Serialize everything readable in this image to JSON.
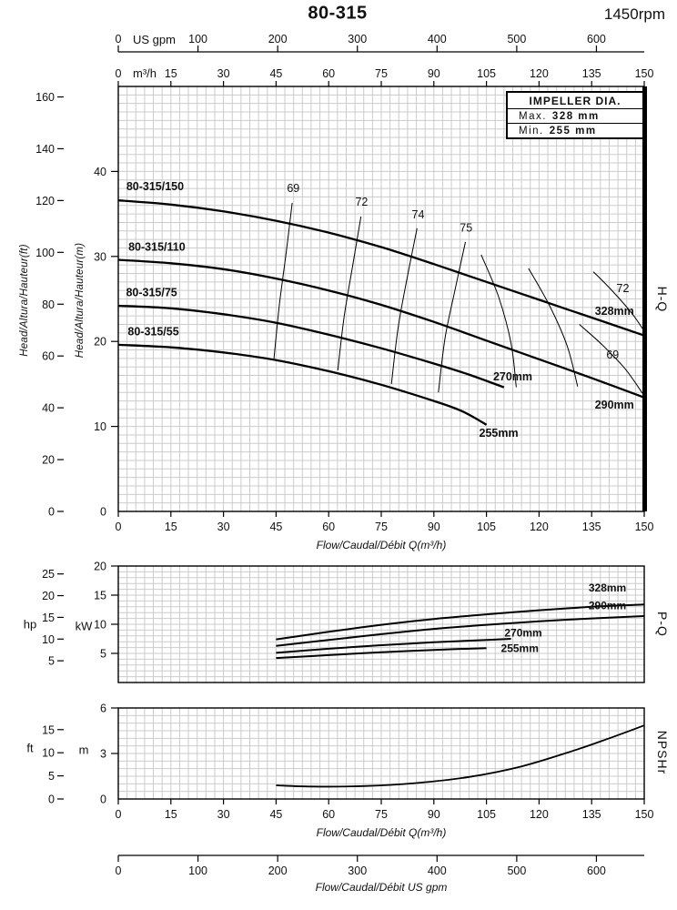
{
  "header": {
    "title": "80-315",
    "rpm": "1450rpm"
  },
  "impeller_box": {
    "title": "IMPELLER DIA.",
    "max_label": "Max.",
    "max_value": "328 mm",
    "min_label": "Min.",
    "min_value": "255 mm"
  },
  "axis_labels": {
    "us_gpm": "US gpm",
    "m3h": "m³/h",
    "head_ft": "Head/Altura/Hauteur(ft)",
    "head_m": "Head/Altura/Hauteur(m)",
    "hp": "hp",
    "kw": "kW",
    "ft": "ft",
    "m": "m",
    "flow_m3h": "Flow/Caudal/Débit Q(m³/h)",
    "flow_gpm": "Flow/Caudal/Débit  US gpm",
    "hq": "H-Q",
    "pq": "P-Q",
    "npshr": "NPSHr"
  },
  "chart_data": [
    {
      "type": "line",
      "name": "H-Q",
      "x_axis_m3h": {
        "min": 0,
        "max": 150,
        "ticks": [
          0,
          15,
          30,
          45,
          60,
          75,
          90,
          105,
          120,
          135,
          150
        ]
      },
      "x_axis_usgpm": {
        "min": 0,
        "max": 660,
        "ticks": [
          0,
          100,
          200,
          300,
          400,
          500,
          600
        ]
      },
      "y_axis_m": {
        "min": 0,
        "max": 50,
        "ticks": [
          0,
          10,
          20,
          30,
          40
        ]
      },
      "y_axis_ft": {
        "min": 0,
        "max": 160,
        "ticks": [
          0,
          20,
          40,
          60,
          80,
          100,
          120,
          140,
          160
        ]
      },
      "series": [
        {
          "name": "328mm",
          "model": "80-315/150",
          "points": [
            [
              0,
              36.6
            ],
            [
              15,
              36.1
            ],
            [
              30,
              35.3
            ],
            [
              45,
              34.2
            ],
            [
              60,
              32.8
            ],
            [
              75,
              31.1
            ],
            [
              90,
              29.1
            ],
            [
              105,
              27.0
            ],
            [
              120,
              24.9
            ],
            [
              135,
              22.8
            ],
            [
              150,
              20.7
            ]
          ],
          "model_label_at": [
            10.5,
            37.8
          ],
          "dia_label_at": [
            141.5,
            23.1
          ]
        },
        {
          "name": "290mm",
          "model": "80-315/110",
          "points": [
            [
              0,
              29.6
            ],
            [
              15,
              29.2
            ],
            [
              30,
              28.5
            ],
            [
              45,
              27.4
            ],
            [
              60,
              26.0
            ],
            [
              75,
              24.3
            ],
            [
              90,
              22.3
            ],
            [
              105,
              20.1
            ],
            [
              120,
              17.9
            ],
            [
              135,
              15.7
            ],
            [
              150,
              13.4
            ]
          ],
          "model_label_at": [
            11,
            30.7
          ],
          "dia_label_at": [
            141.5,
            12.1
          ]
        },
        {
          "name": "270mm",
          "model": "80-315/75",
          "points": [
            [
              0,
              24.2
            ],
            [
              15,
              23.9
            ],
            [
              30,
              23.2
            ],
            [
              45,
              22.2
            ],
            [
              60,
              20.8
            ],
            [
              75,
              19.2
            ],
            [
              90,
              17.4
            ],
            [
              100,
              16.1
            ],
            [
              110,
              14.6
            ]
          ],
          "model_label_at": [
            9.5,
            25.3
          ],
          "dia_label_at": [
            112.5,
            15.4
          ]
        },
        {
          "name": "255mm",
          "model": "80-315/55",
          "points": [
            [
              0,
              19.6
            ],
            [
              15,
              19.3
            ],
            [
              30,
              18.7
            ],
            [
              45,
              17.8
            ],
            [
              60,
              16.5
            ],
            [
              75,
              14.9
            ],
            [
              90,
              13.0
            ],
            [
              98,
              11.8
            ],
            [
              105,
              10.2
            ]
          ],
          "model_label_at": [
            10,
            20.7
          ],
          "dia_label_at": [
            108.5,
            8.8
          ]
        }
      ],
      "efficiency_contours": [
        {
          "label": "69",
          "label_at": [
            49.9,
            37.6
          ],
          "points": [
            [
              49.6,
              36.3
            ],
            [
              47.8,
              30.2
            ],
            [
              45.9,
              24.2
            ],
            [
              44.4,
              18.0
            ]
          ]
        },
        {
          "label": "72",
          "label_at": [
            69.4,
            36.0
          ],
          "points": [
            [
              69.2,
              34.7
            ],
            [
              66.8,
              28.8
            ],
            [
              64.4,
              22.9
            ],
            [
              62.6,
              16.6
            ]
          ]
        },
        {
          "label": "74",
          "label_at": [
            85.5,
            34.5
          ],
          "points": [
            [
              85.2,
              33.3
            ],
            [
              82.4,
              27.5
            ],
            [
              79.8,
              21.6
            ],
            [
              77.9,
              15.0
            ]
          ]
        },
        {
          "label": "75",
          "label_at": [
            99.2,
            32.9
          ],
          "points": [
            [
              99.0,
              31.7
            ],
            [
              96.0,
              26.0
            ],
            [
              93.2,
              20.4
            ],
            [
              91.3,
              14.0
            ]
          ]
        },
        {
          "label": "",
          "label_at": null,
          "points": [
            [
              103.5,
              30.2
            ],
            [
              108.5,
              25.2
            ],
            [
              112.0,
              19.8
            ],
            [
              113.5,
              14.6
            ]
          ]
        },
        {
          "label": "",
          "label_at": null,
          "points": [
            [
              117.0,
              28.6
            ],
            [
              123.0,
              24.2
            ],
            [
              128.0,
              19.5
            ],
            [
              131.0,
              14.7
            ]
          ]
        },
        {
          "label": "72",
          "label_at": [
            143.9,
            25.8
          ],
          "points": [
            [
              135.5,
              28.2
            ],
            [
              141.0,
              25.9
            ],
            [
              146.5,
              23.3
            ],
            [
              150.0,
              21.2
            ]
          ]
        },
        {
          "label": "69",
          "label_at": [
            141.0,
            18.0
          ],
          "points": [
            [
              131.5,
              22.0
            ],
            [
              138.0,
              19.6
            ],
            [
              144.5,
              16.8
            ],
            [
              149.5,
              13.9
            ]
          ]
        }
      ]
    },
    {
      "type": "line",
      "name": "P-Q",
      "y_axis_kw": {
        "min": 0,
        "max": 20,
        "ticks": [
          5,
          10,
          15,
          20
        ]
      },
      "y_axis_hp": {
        "ticks": [
          5,
          10,
          15,
          20,
          25
        ]
      },
      "series": [
        {
          "name": "328mm",
          "points": [
            [
              45,
              7.4
            ],
            [
              60,
              8.7
            ],
            [
              75,
              9.9
            ],
            [
              90,
              10.9
            ],
            [
              105,
              11.7
            ],
            [
              120,
              12.4
            ],
            [
              135,
              13.0
            ],
            [
              150,
              13.4
            ]
          ],
          "label_at": [
            139.5,
            15.6
          ]
        },
        {
          "name": "290mm",
          "points": [
            [
              45,
              6.3
            ],
            [
              60,
              7.3
            ],
            [
              75,
              8.3
            ],
            [
              90,
              9.2
            ],
            [
              105,
              9.9
            ],
            [
              120,
              10.5
            ],
            [
              135,
              11.0
            ],
            [
              150,
              11.4
            ]
          ],
          "label_at": [
            139.5,
            12.6
          ]
        },
        {
          "name": "270mm",
          "points": [
            [
              45,
              5.1
            ],
            [
              60,
              5.8
            ],
            [
              75,
              6.4
            ],
            [
              90,
              6.9
            ],
            [
              105,
              7.3
            ],
            [
              112,
              7.5
            ]
          ],
          "label_at": [
            115.5,
            7.9
          ]
        },
        {
          "name": "255mm",
          "points": [
            [
              45,
              4.2
            ],
            [
              60,
              4.7
            ],
            [
              75,
              5.2
            ],
            [
              90,
              5.6
            ],
            [
              105,
              5.9
            ]
          ],
          "label_at": [
            114.5,
            5.2
          ]
        }
      ]
    },
    {
      "type": "line",
      "name": "NPSHr",
      "x_axis_m3h": {
        "ticks": [
          0,
          15,
          30,
          45,
          60,
          75,
          90,
          105,
          120,
          135,
          150
        ]
      },
      "y_axis_m": {
        "min": 0,
        "max": 6,
        "ticks": [
          0,
          3,
          6
        ]
      },
      "y_axis_ft": {
        "ticks": [
          0,
          5,
          10,
          15
        ]
      },
      "series": [
        {
          "name": "NPSHr",
          "points": [
            [
              45,
              0.9
            ],
            [
              55,
              0.82
            ],
            [
              70,
              0.85
            ],
            [
              85,
              1.05
            ],
            [
              100,
              1.45
            ],
            [
              115,
              2.15
            ],
            [
              130,
              3.2
            ],
            [
              140,
              4.0
            ],
            [
              150,
              4.85
            ]
          ]
        }
      ]
    }
  ],
  "bottom_axis": {
    "unit": "US gpm",
    "max": 660,
    "ticks": [
      0,
      100,
      200,
      300,
      400,
      500,
      600
    ]
  }
}
